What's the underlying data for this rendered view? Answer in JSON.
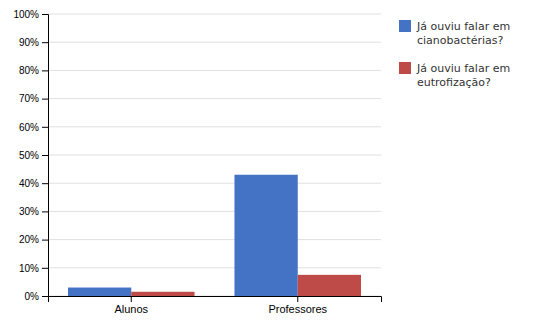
{
  "chart_data": {
    "type": "bar",
    "categories": [
      "Alunos",
      "Professores"
    ],
    "series": [
      {
        "name": "Já ouviu falar em\ncianobactérias?",
        "color": "#4472C4",
        "values": [
          3.0,
          43.0
        ]
      },
      {
        "name": "Já ouviu falar em\neutrofização?",
        "color": "#BE4B48",
        "values": [
          1.5,
          7.5
        ]
      }
    ],
    "ylim": [
      0,
      100
    ],
    "yticks": [
      {
        "value": 0,
        "label": "0%"
      },
      {
        "value": 10,
        "label": "10%"
      },
      {
        "value": 20,
        "label": "20%"
      },
      {
        "value": 30,
        "label": "30%"
      },
      {
        "value": 40,
        "label": "40%"
      },
      {
        "value": 50,
        "label": "50%"
      },
      {
        "value": 60,
        "label": "60%"
      },
      {
        "value": 70,
        "label": "70%"
      },
      {
        "value": 80,
        "label": "80%"
      },
      {
        "value": 90,
        "label": "90%"
      },
      {
        "value": 100,
        "label": "100%"
      }
    ],
    "grid": true,
    "legend": "right"
  }
}
